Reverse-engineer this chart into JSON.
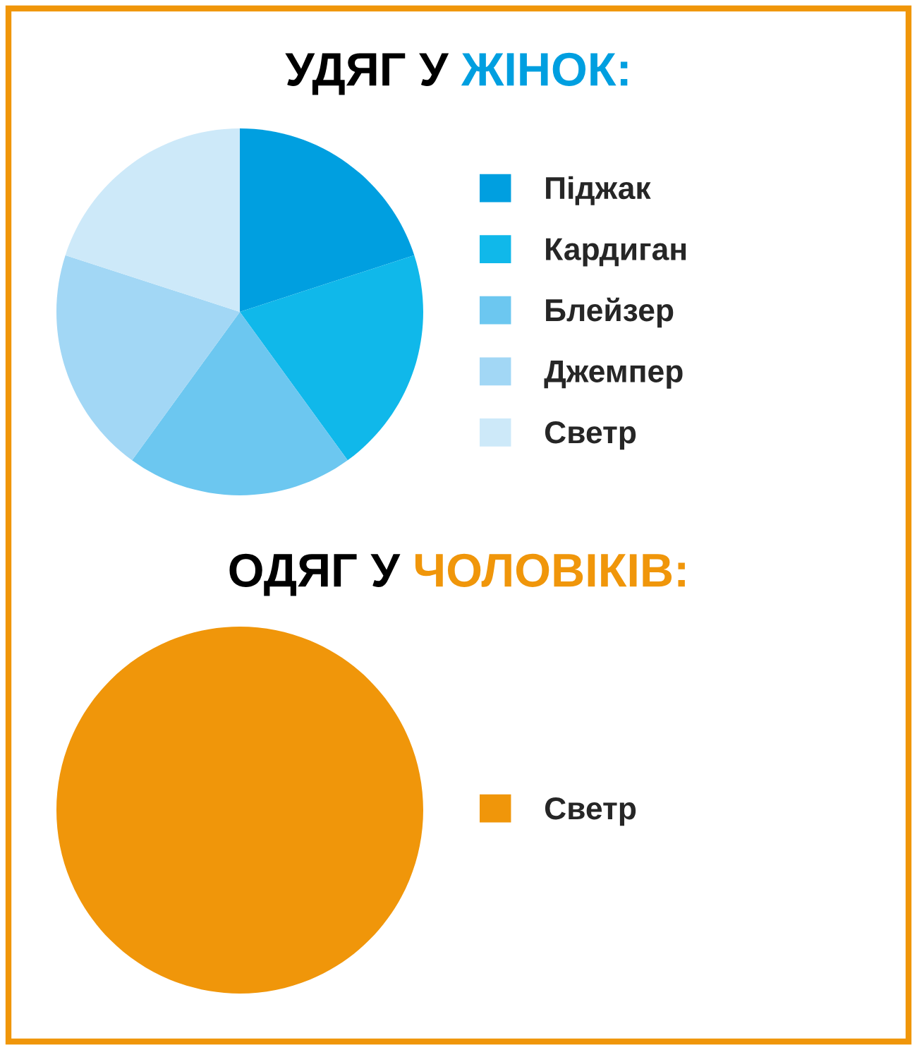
{
  "chart_data": [
    {
      "type": "pie",
      "title": "УДЯГ У ЖІНОК:",
      "categories": [
        "Піджак",
        "Кардиган",
        "Блейзер",
        "Джемпер",
        "Светр"
      ],
      "values": [
        20,
        20,
        20,
        20,
        20
      ],
      "colors": [
        "#009fe0",
        "#10b8ea",
        "#6cc7f0",
        "#a2d7f5",
        "#cde9f9"
      ],
      "legend": "right"
    },
    {
      "type": "pie",
      "title": "ОДЯГ У ЧОЛОВІКІВ:",
      "categories": [
        "Светр"
      ],
      "values": [
        100
      ],
      "colors": [
        "#f0960a"
      ],
      "legend": "right"
    }
  ]
}
